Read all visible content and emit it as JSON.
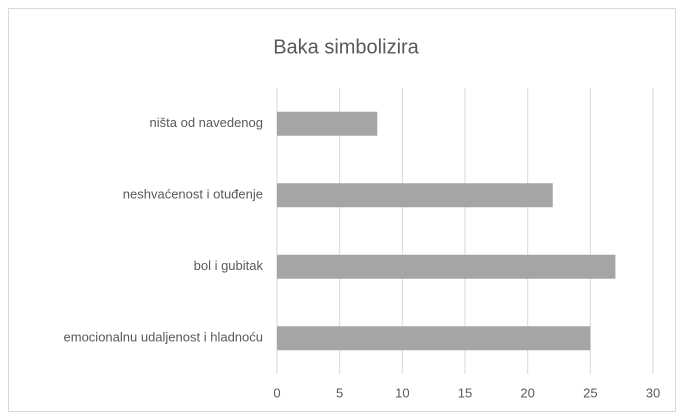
{
  "chart_data": {
    "type": "bar",
    "orientation": "horizontal",
    "title": "Baka simbolizira",
    "categories": [
      "ništa od navedenog",
      "neshvaćenost i otuđenje",
      "bol i gubitak ",
      "emocionalnu udaljenost i hladnoću"
    ],
    "values": [
      8,
      22,
      27,
      25
    ],
    "color": "#a5a5a5",
    "xlim": [
      0,
      30
    ],
    "xticks": [
      0,
      5,
      10,
      15,
      20,
      25,
      30
    ],
    "grid": true
  }
}
